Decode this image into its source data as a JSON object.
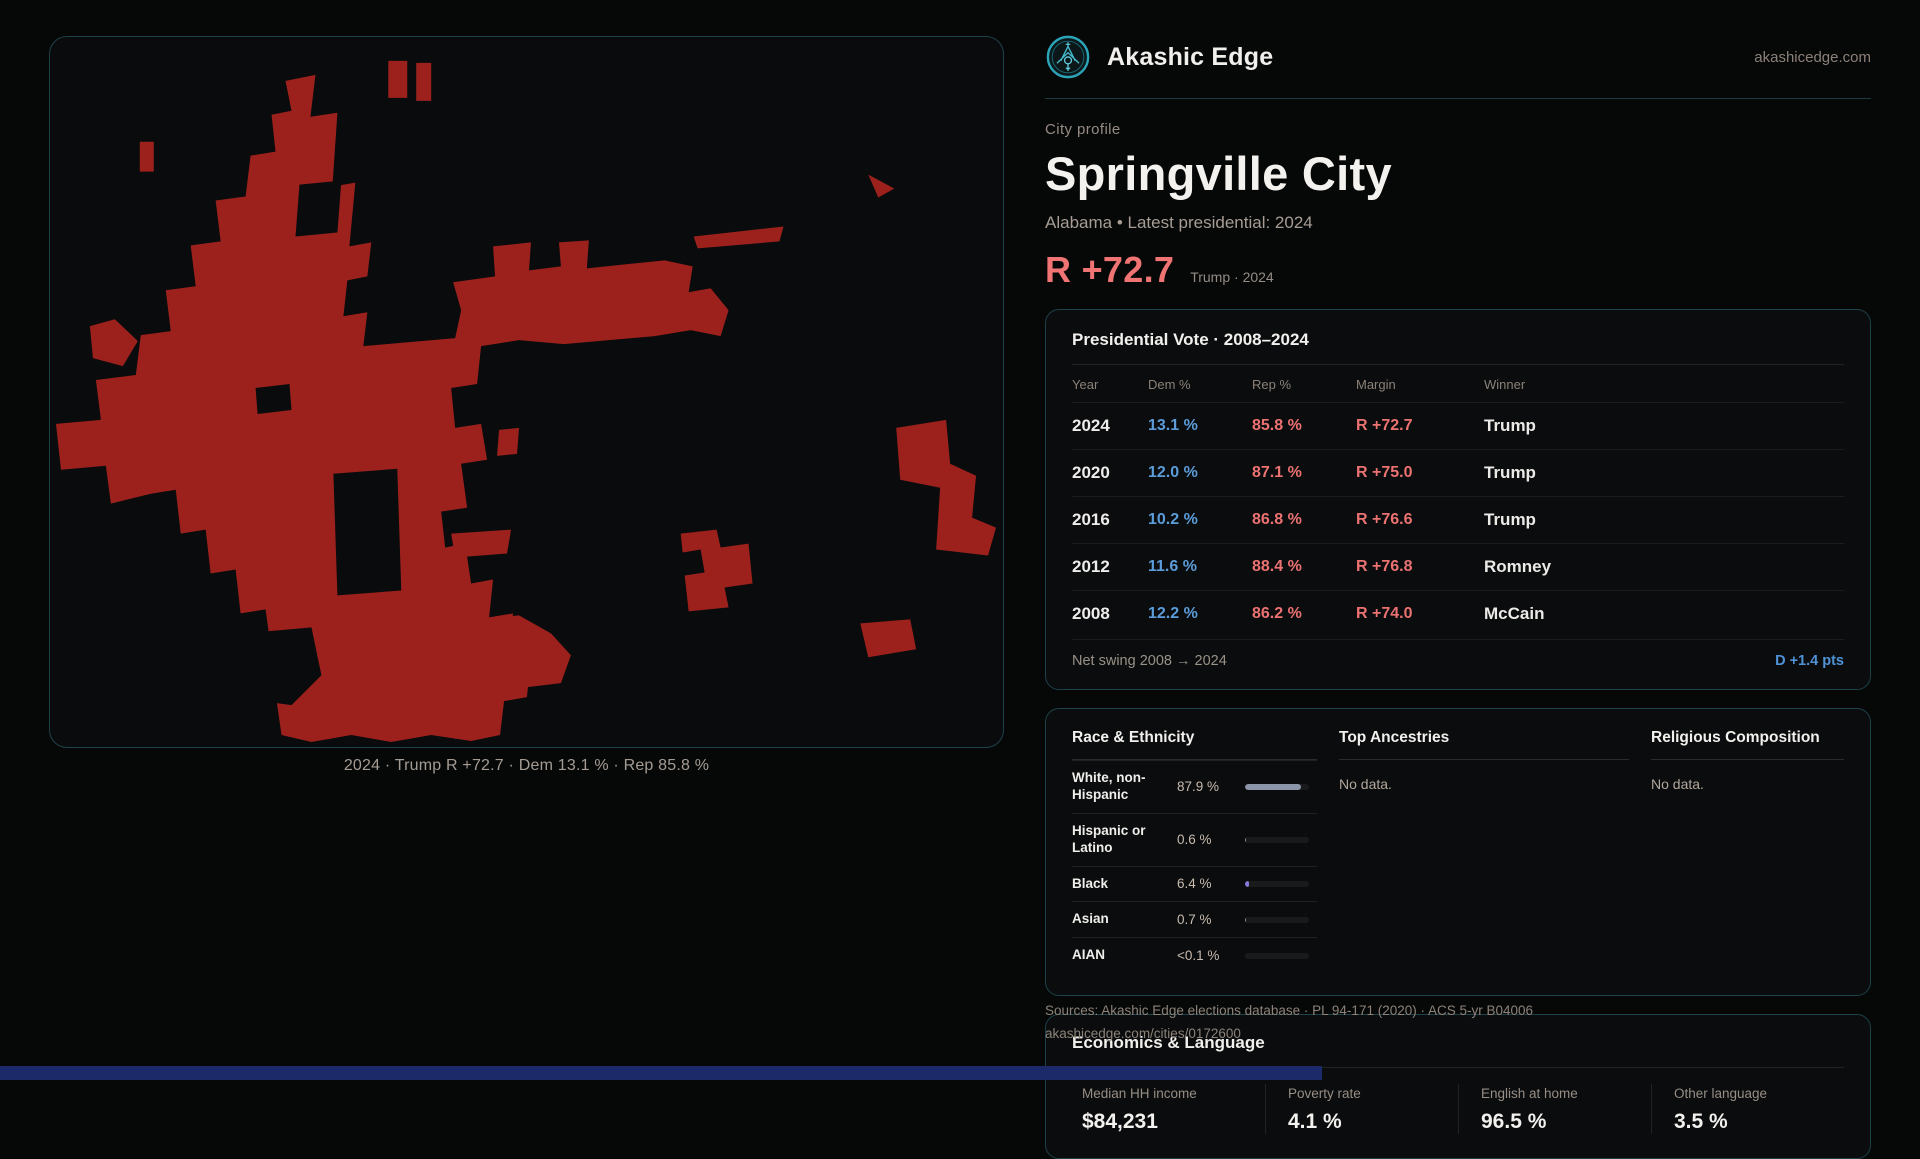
{
  "brand": {
    "name": "Akashic Edge",
    "domain": "akashicedge.com"
  },
  "accents": {
    "teal": "#2fa9bc",
    "blue": "#5b9cd9",
    "red": "#ee7171",
    "map_red": "#9c211d",
    "bar_slate": "#8b95a7",
    "bar_purple": "#8678d9"
  },
  "profile": {
    "kicker": "City profile",
    "title": "Springville City",
    "subtitle": "Alabama • Latest presidential: 2024",
    "headline_margin": "R +72.7",
    "headline_note": "Trump · 2024"
  },
  "map": {
    "caption": "2024 · Trump R +72.7 · Dem 13.1 % · Rep 85.8 %",
    "fill_color": "#9c211d",
    "background": "#0a0b0c"
  },
  "vote_table": {
    "title": "Presidential Vote · 2008–2024",
    "columns": [
      "Year",
      "Dem %",
      "Rep %",
      "Margin",
      "Winner"
    ],
    "rows": [
      {
        "year": "2024",
        "dem": "13.1 %",
        "rep": "85.8 %",
        "margin": "R +72.7",
        "winner": "Trump"
      },
      {
        "year": "2020",
        "dem": "12.0 %",
        "rep": "87.1 %",
        "margin": "R +75.0",
        "winner": "Trump"
      },
      {
        "year": "2016",
        "dem": "10.2 %",
        "rep": "86.8 %",
        "margin": "R +76.6",
        "winner": "Trump"
      },
      {
        "year": "2012",
        "dem": "11.6 %",
        "rep": "88.4 %",
        "margin": "R +76.8",
        "winner": "Romney"
      },
      {
        "year": "2008",
        "dem": "12.2 %",
        "rep": "86.2 %",
        "margin": "R +74.0",
        "winner": "McCain"
      }
    ],
    "net_swing_label": "Net swing 2008 → 2024",
    "net_swing_value": "D +1.4 pts"
  },
  "demographics": {
    "race": {
      "title": "Race & Ethnicity",
      "rows": [
        {
          "label": "White, non-Hispanic",
          "value": "87.9 %",
          "pct": 87.9,
          "color": "#8b95a7"
        },
        {
          "label": "Hispanic or Latino",
          "value": "0.6 %",
          "pct": 0.6,
          "color": "#8b95a7"
        },
        {
          "label": "Black",
          "value": "6.4 %",
          "pct": 6.4,
          "color": "#8678d9"
        },
        {
          "label": "Asian",
          "value": "0.7 %",
          "pct": 0.7,
          "color": "#8b95a7"
        },
        {
          "label": "AIAN",
          "value": "<0.1 %",
          "pct": 0.1,
          "color": "#8b95a7"
        }
      ]
    },
    "ancestries": {
      "title": "Top Ancestries",
      "empty": "No data."
    },
    "religion": {
      "title": "Religious Composition",
      "empty": "No data."
    }
  },
  "economics": {
    "title": "Economics & Language",
    "stats": [
      {
        "label": "Median HH income",
        "value": "$84,231"
      },
      {
        "label": "Poverty rate",
        "value": "4.1 %"
      },
      {
        "label": "English at home",
        "value": "96.5 %"
      },
      {
        "label": "Other language",
        "value": "3.5 %"
      }
    ]
  },
  "footer": {
    "sources": "Sources: Akashic Edge elections database · PL 94-171 (2020) · ACS 5-yr B04006",
    "permalink": "akashicedge.com/cities/0172600"
  }
}
